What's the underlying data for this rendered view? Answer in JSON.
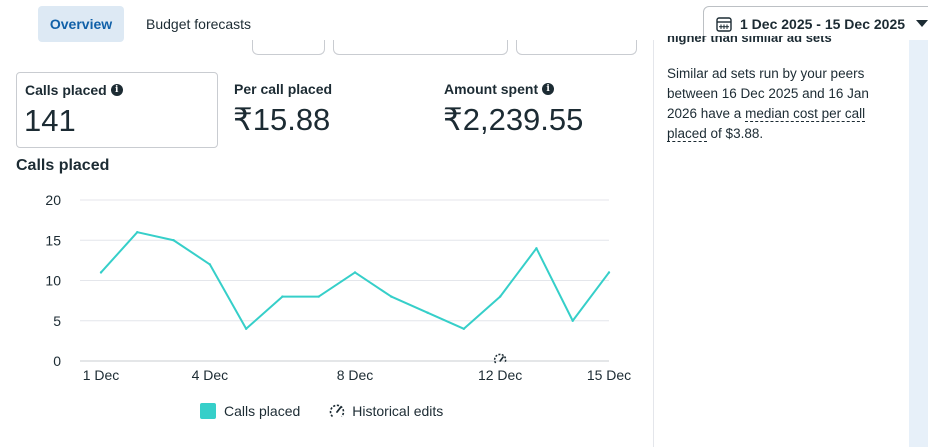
{
  "tabs": [
    {
      "label": "Overview",
      "active": true
    },
    {
      "label": "Budget forecasts",
      "active": false
    }
  ],
  "date_range": {
    "label": "1 Dec 2025 - 15 Dec 2025",
    "icon": "calendar-icon"
  },
  "metrics": [
    {
      "label": "Calls placed",
      "value": "141",
      "info": true
    },
    {
      "label": "Per call placed",
      "value": "₹15.88",
      "info": false
    },
    {
      "label": "Amount spent",
      "value": "₹2,239.55",
      "info": true
    }
  ],
  "side_panel": {
    "cut_heading": "higher than similar ad sets",
    "text_before": "Similar ad sets run by your peers between 16 Dec 2025 and 16 Jan 2026 have a ",
    "link_text": "median cost per call placed",
    "text_after": " of $3.88."
  },
  "chart": {
    "title": "Calls placed",
    "legend_series": "Calls placed",
    "legend_edits": "Historical edits"
  },
  "chart_data": {
    "type": "line",
    "title": "Calls placed",
    "x": [
      "1 Dec",
      "2 Dec",
      "3 Dec",
      "4 Dec",
      "5 Dec",
      "6 Dec",
      "7 Dec",
      "8 Dec",
      "9 Dec",
      "10 Dec",
      "11 Dec",
      "12 Dec",
      "13 Dec",
      "14 Dec",
      "15 Dec"
    ],
    "x_tick_labels": [
      "1 Dec",
      "4 Dec",
      "8 Dec",
      "12 Dec",
      "15 Dec"
    ],
    "series": [
      {
        "name": "Calls placed",
        "values": [
          11,
          16,
          15,
          12,
          4,
          8,
          8,
          11,
          8,
          6,
          4,
          8,
          14,
          5,
          11
        ],
        "color": "#36cfc9"
      }
    ],
    "ylim": [
      0,
      20
    ],
    "y_ticks": [
      0,
      5,
      10,
      15,
      20
    ],
    "grid": true,
    "historical_edit_marker_at": "12 Dec",
    "legend_placement": "bottom"
  }
}
